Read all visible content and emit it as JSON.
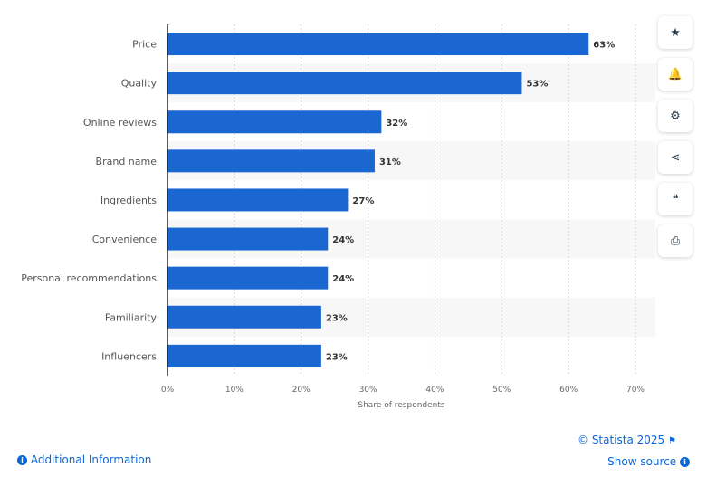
{
  "chart_data": {
    "type": "bar",
    "orientation": "horizontal",
    "categories": [
      "Price",
      "Quality",
      "Online reviews",
      "Brand name",
      "Ingredients",
      "Convenience",
      "Personal recommendations",
      "Familiarity",
      "Influencers"
    ],
    "values": [
      63,
      53,
      32,
      31,
      27,
      24,
      24,
      23,
      23
    ],
    "data_labels": [
      "63%",
      "53%",
      "32%",
      "31%",
      "27%",
      "24%",
      "24%",
      "23%",
      "23%"
    ],
    "xlabel": "Share of respondents",
    "xlim": [
      0,
      70
    ],
    "xticks": [
      "0%",
      "10%",
      "20%",
      "30%",
      "40%",
      "50%",
      "60%",
      "70%"
    ],
    "grid": true,
    "bar_color": "#1a67d2"
  },
  "sidebar": [
    {
      "icon": "star-icon",
      "glyph": "★"
    },
    {
      "icon": "bell-icon",
      "glyph": "🔔"
    },
    {
      "icon": "gear-icon",
      "glyph": "⚙"
    },
    {
      "icon": "share-icon",
      "glyph": "⋖"
    },
    {
      "icon": "quote-icon",
      "glyph": "❝"
    },
    {
      "icon": "print-icon",
      "glyph": "⎙"
    }
  ],
  "footer": {
    "additional_info": "Additional Information",
    "copyright": "© Statista 2025",
    "show_source": "Show source"
  }
}
